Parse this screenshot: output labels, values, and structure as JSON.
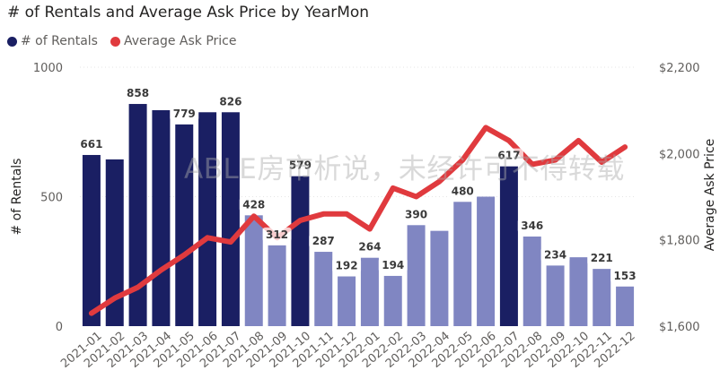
{
  "chart_data": {
    "type": "bar+line",
    "title": "# of Rentals and Average Ask Price by YearMon",
    "categories": [
      "2021-01",
      "2021-02",
      "2021-03",
      "2021-04",
      "2021-05",
      "2021-06",
      "2021-07",
      "2021-08",
      "2021-09",
      "2021-10",
      "2021-11",
      "2021-12",
      "2022-01",
      "2022-02",
      "2022-03",
      "2022-04",
      "2022-05",
      "2022-06",
      "2022-07",
      "2022-08",
      "2022-09",
      "2022-10",
      "2022-11",
      "2022-12"
    ],
    "series": [
      {
        "name": "# of Rentals",
        "type": "bar",
        "axis": "left",
        "values": [
          661,
          644,
          858,
          834,
          779,
          826,
          826,
          428,
          312,
          579,
          287,
          192,
          264,
          194,
          390,
          368,
          480,
          500,
          617,
          346,
          234,
          266,
          221,
          153
        ],
        "labels": [
          "661",
          "",
          "858",
          "",
          "779",
          "",
          "826",
          "428",
          "312",
          "579",
          "287",
          "192",
          "264",
          "194",
          "390",
          "",
          "480",
          "",
          "617",
          "346",
          "234",
          "",
          "221",
          "153"
        ],
        "highlighted": [
          true,
          true,
          true,
          true,
          true,
          true,
          true,
          false,
          false,
          true,
          false,
          false,
          false,
          false,
          false,
          false,
          false,
          false,
          true,
          false,
          false,
          false,
          false,
          false
        ]
      },
      {
        "name": "Average Ask Price",
        "type": "line",
        "axis": "right",
        "values": [
          1630,
          1665,
          1690,
          1730,
          1765,
          1805,
          1795,
          1855,
          1805,
          1845,
          1860,
          1860,
          1825,
          1920,
          1900,
          1935,
          1985,
          2060,
          2030,
          1975,
          1985,
          2030,
          1980,
          2015
        ]
      }
    ],
    "y_left": {
      "label": "# of Rentals",
      "range": [
        0,
        1000
      ],
      "ticks": [
        "0",
        "500",
        "1000"
      ],
      "tick_values": [
        0,
        500,
        1000
      ]
    },
    "y_right": {
      "label": "Average Ask Price",
      "range": [
        1600,
        2200
      ],
      "ticks": [
        "$1,600",
        "$1,800",
        "$2,000",
        "$2,200"
      ],
      "tick_values": [
        1600,
        1800,
        2000,
        2200
      ]
    },
    "xlabel": "",
    "colors": {
      "bar_dark": "#1a1f63",
      "bar_light": "#8086c2",
      "line": "#e03a3e",
      "grid": "#e6e6e6"
    }
  },
  "legend": {
    "rentals": "# of Rentals",
    "price": "Average Ask Price"
  },
  "watermark": "ABLE房市析说，未经许可不得转载"
}
